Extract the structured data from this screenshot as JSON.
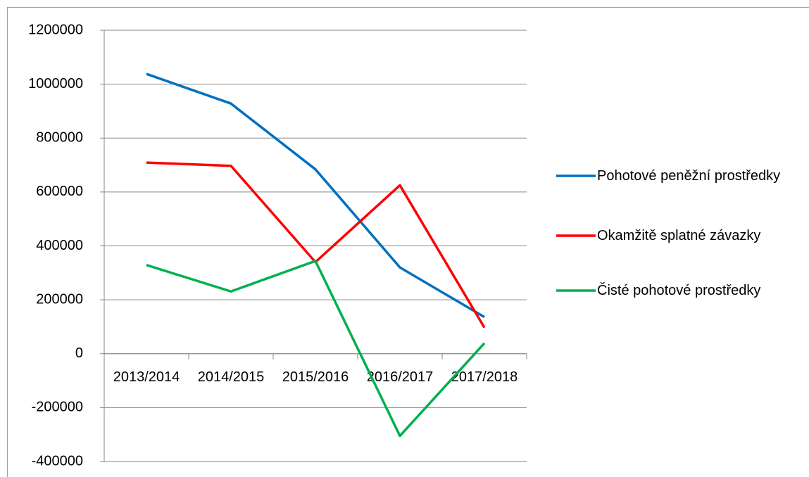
{
  "chart_data": {
    "type": "line",
    "categories": [
      "2013/2014",
      "2014/2015",
      "2015/2016",
      "2016/2017",
      "2017/2018"
    ],
    "series": [
      {
        "name": "Pohotové peněžní prostředky",
        "color": "#0070c0",
        "values": [
          1038000,
          928000,
          684000,
          320000,
          136000
        ]
      },
      {
        "name": "Okamžitě splatné závazky",
        "color": "#ff0000",
        "values": [
          709000,
          697000,
          340000,
          625000,
          97000
        ]
      },
      {
        "name": "Čisté pohotové prostředky",
        "color": "#00b050",
        "values": [
          329000,
          231000,
          344000,
          -305000,
          39000
        ]
      }
    ],
    "ylim": [
      -400000,
      1200000
    ],
    "yticks": [
      -400000,
      -200000,
      0,
      200000,
      400000,
      600000,
      800000,
      1000000,
      1200000
    ],
    "grid": true,
    "legend": "right"
  }
}
